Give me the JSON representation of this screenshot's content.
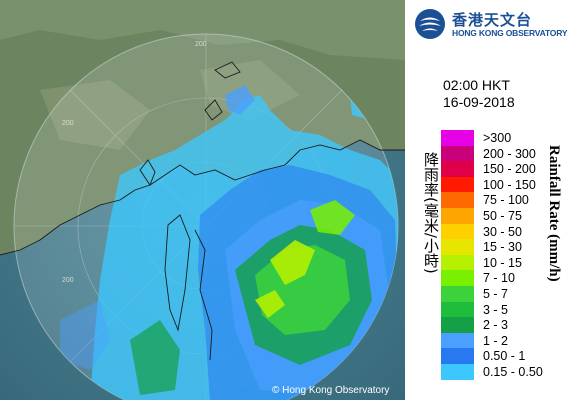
{
  "logo": {
    "name_zh": "香港天文台",
    "name_en": "HONG KONG OBSERVATORY"
  },
  "time_label": "02:00 HKT",
  "date_label": "16-09-2018",
  "legend": {
    "title_zh": "降雨率(毫米/小時)",
    "title_en": "Rainfall Rate (mm/h)",
    "items": [
      {
        "label": ">300",
        "color": "#e600e6"
      },
      {
        "label": "200 - 300",
        "color": "#c8007a"
      },
      {
        "label": "150 - 200",
        "color": "#e0004a"
      },
      {
        "label": "100 - 150",
        "color": "#ff1a00"
      },
      {
        "label": "75 - 100",
        "color": "#ff6a00"
      },
      {
        "label": "50 - 75",
        "color": "#ffa500"
      },
      {
        "label": "30 - 50",
        "color": "#ffd000"
      },
      {
        "label": "15 - 30",
        "color": "#e6e600"
      },
      {
        "label": "10 - 15",
        "color": "#b4f000"
      },
      {
        "label": "7 - 10",
        "color": "#78f000"
      },
      {
        "label": "5 - 7",
        "color": "#3cd23c"
      },
      {
        "label": "3 - 5",
        "color": "#1ebe3c"
      },
      {
        "label": "2 - 3",
        "color": "#14a046"
      },
      {
        "label": "1 - 2",
        "color": "#4ba0ff"
      },
      {
        "label": "0.50 - 1",
        "color": "#2878f0"
      },
      {
        "label": "0.15 - 0.50",
        "color": "#3cc8ff"
      }
    ]
  },
  "map": {
    "range_labels": [
      "200",
      "200",
      "200"
    ],
    "copyright": "© Hong Kong Observatory"
  }
}
